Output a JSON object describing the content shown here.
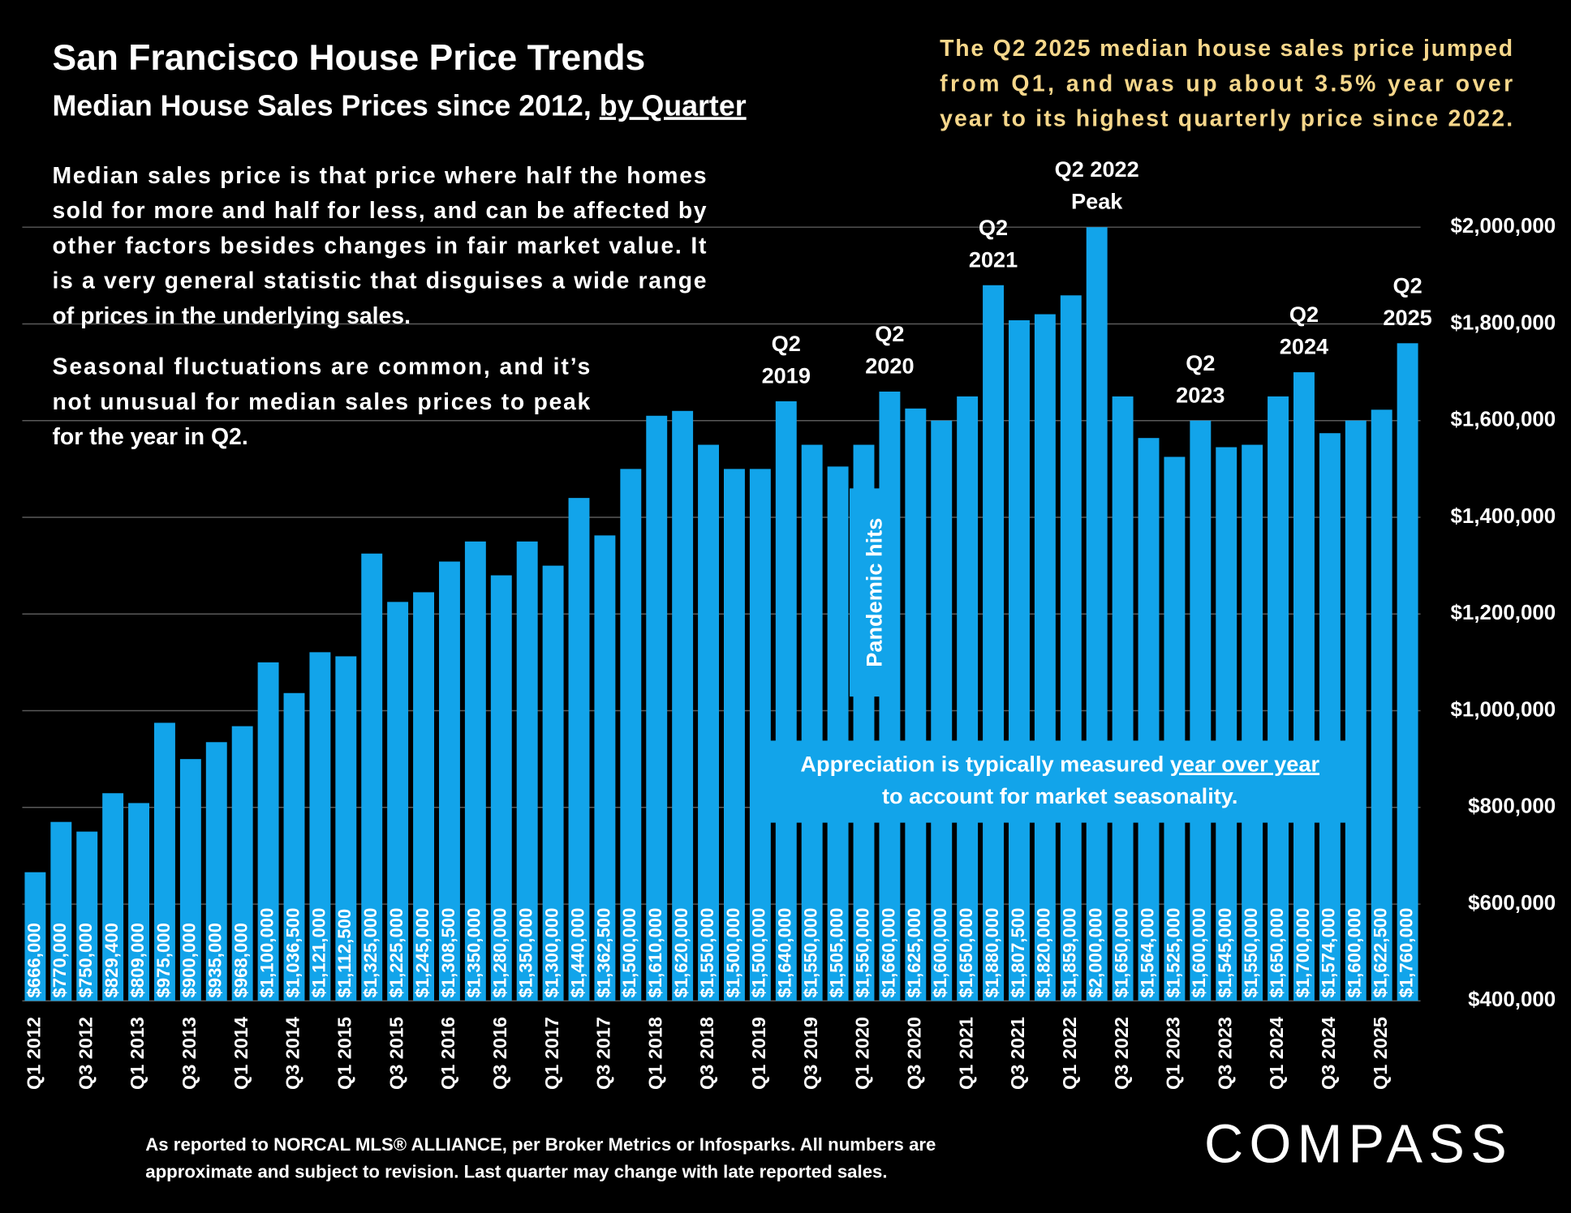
{
  "chart_data": {
    "type": "bar",
    "title": "San Francisco House Price Trends",
    "subtitle": "Median House Sales Prices since 2012, ",
    "subtitle_emphasis": "by Quarter",
    "callout": [
      "The Q2 2025 median house sales price jumped",
      "from Q1, and was up about 3.5% year over",
      "year to its highest quarterly price since 2022."
    ],
    "description": [
      [
        "Median sales price is that price where half the homes",
        "sold for more and half for less, and can be affected by",
        "other factors besides changes in fair market value. It",
        "is a very general statistic that disguises a wide range",
        "of prices in the underlying sales."
      ],
      [
        "Seasonal fluctuations are common, and it’s",
        "not unusual for median sales prices to peak",
        "for the year in Q2."
      ]
    ],
    "pandemic_note": "Pandemic hits",
    "appreciation_note": [
      "Appreciation is typically measured ",
      "year over year",
      "to account for market seasonality."
    ],
    "annotations": [
      [
        "Q2",
        "2019"
      ],
      [
        "Q2",
        "2020"
      ],
      [
        "Q2",
        "2021"
      ],
      [
        "Q2 2022",
        "Peak"
      ],
      [
        "Q2",
        "2023"
      ],
      [
        "Q2",
        "2024"
      ],
      [
        "Q2",
        "2025"
      ]
    ],
    "footnote": [
      "As reported to NORCAL MLS® ALLIANCE, per Broker Metrics or Infosparks. All numbers are",
      "approximate and subject to revision. Last quarter may change with late reported sales."
    ],
    "brand": "COMPASS",
    "categories": [
      "Q1 2012",
      null,
      "Q3 2012",
      null,
      "Q1 2013",
      null,
      "Q3 2013",
      null,
      "Q1 2014",
      null,
      "Q3 2014",
      null,
      "Q1 2015",
      null,
      "Q3 2015",
      null,
      "Q1 2016",
      null,
      "Q3 2016",
      null,
      "Q1 2017",
      null,
      "Q3 2017",
      null,
      "Q1 2018",
      null,
      "Q3 2018",
      null,
      "Q1 2019",
      null,
      "Q3 2019",
      null,
      "Q1 2020",
      null,
      "Q3 2020",
      null,
      "Q1 2021",
      null,
      "Q3 2021",
      null,
      "Q1 2022",
      null,
      "Q3 2022",
      null,
      "Q1 2023",
      null,
      "Q3 2023",
      null,
      "Q1 2024",
      null,
      "Q3 2024",
      null,
      "Q1 2025",
      null
    ],
    "values": [
      666000,
      770000,
      750000,
      829400,
      809000,
      975000,
      900000,
      935000,
      968000,
      1100000,
      1036500,
      1121000,
      1112500,
      1325000,
      1225000,
      1245000,
      1308500,
      1350000,
      1280000,
      1350000,
      1300000,
      1440000,
      1362500,
      1500000,
      1610000,
      1620000,
      1550000,
      1500000,
      1500000,
      1640000,
      1550000,
      1505000,
      1550000,
      1660000,
      1625000,
      1600000,
      1650000,
      1880000,
      1807500,
      1820000,
      1859000,
      2000000,
      1650000,
      1564000,
      1525000,
      1600000,
      1545000,
      1550000,
      1650000,
      1700000,
      1574000,
      1600000,
      1622500,
      1760000
    ],
    "value_labels": [
      "$666,000",
      "$770,000",
      "$750,000",
      "$829,400",
      "$809,000",
      "$975,000",
      "$900,000",
      "$935,000",
      "$968,000",
      "$1,100,000",
      "$1,036,500",
      "$1,121,000",
      "$1,112,500",
      "$1,325,000",
      "$1,225,000",
      "$1,245,000",
      "$1,308,500",
      "$1,350,000",
      "$1,280,000",
      "$1,350,000",
      "$1,300,000",
      "$1,440,000",
      "$1,362,500",
      "$1,500,000",
      "$1,610,000",
      "$1,620,000",
      "$1,550,000",
      "$1,500,000",
      "$1,500,000",
      "$1,640,000",
      "$1,550,000",
      "$1,505,000",
      "$1,550,000",
      "$1,660,000",
      "$1,625,000",
      "$1,600,000",
      "$1,650,000",
      "$1,880,000",
      "$1,807,500",
      "$1,820,000",
      "$1,859,000",
      "$2,000,000",
      "$1,650,000",
      "$1,564,000",
      "$1,525,000",
      "$1,600,000",
      "$1,545,000",
      "$1,550,000",
      "$1,650,000",
      "$1,700,000",
      "$1,574,000",
      "$1,600,000",
      "$1,622,500",
      "$1,760,000"
    ],
    "color": "#12a4ea",
    "ylim": [
      400000,
      2000000
    ],
    "yticks": [
      {
        "value": 400000,
        "label": "$400,000"
      },
      {
        "value": 600000,
        "label": "$600,000"
      },
      {
        "value": 800000,
        "label": "$800,000"
      },
      {
        "value": 1000000,
        "label": "$1,000,000"
      },
      {
        "value": 1200000,
        "label": "$1,200,000"
      },
      {
        "value": 1400000,
        "label": "$1,400,000"
      },
      {
        "value": 1600000,
        "label": "$1,600,000"
      },
      {
        "value": 1800000,
        "label": "$1,800,000"
      },
      {
        "value": 2000000,
        "label": "$2,000,000"
      }
    ],
    "grid": true
  }
}
